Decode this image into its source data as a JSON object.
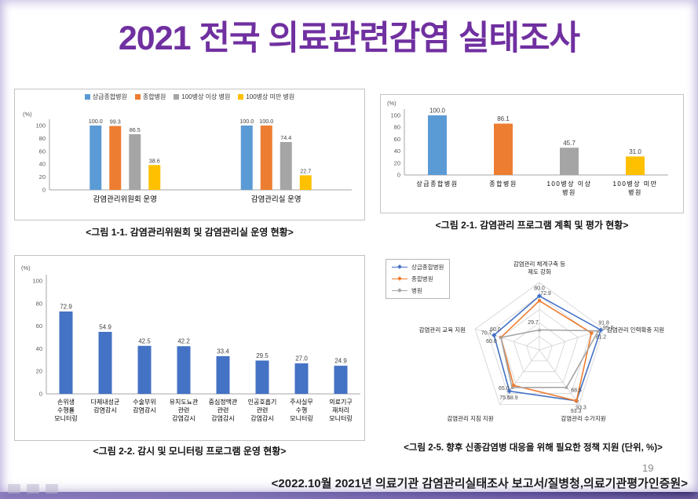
{
  "title": "2021 전국 의료관련감염 실태조사",
  "colors": {
    "title": "#7030A0",
    "supergeneral_blue": "#5B9BD5",
    "general_orange": "#ED7D31",
    "over100_gray": "#A5A5A5",
    "under100_yellow": "#FFC000",
    "monitoring_blue": "#4472C4"
  },
  "chart_data": [
    {
      "type": "bar",
      "variant": "grouped",
      "unit_label": "(%)",
      "ylim": [
        0,
        100
      ],
      "yticks": [
        0,
        20,
        40,
        60,
        80,
        100
      ],
      "categories": [
        "감염관리위원회 운영",
        "감염관리실 운영"
      ],
      "series": [
        {
          "name": "상급종합병원",
          "color": "#5B9BD5",
          "values": [
            100.0,
            100.0
          ]
        },
        {
          "name": "종합병원",
          "color": "#ED7D31",
          "values": [
            99.3,
            100.0
          ]
        },
        {
          "name": "100병상 이상 병원",
          "color": "#A5A5A5",
          "values": [
            86.5,
            74.4
          ]
        },
        {
          "name": "100병상 미만 병원",
          "color": "#FFC000",
          "values": [
            38.6,
            22.7
          ]
        }
      ],
      "legend_position": "top",
      "grid": false,
      "caption": "<그림 1-1. 감염관리위원회 및 감염관리실 운영 현황>"
    },
    {
      "type": "bar",
      "variant": "single",
      "unit_label": "(%)",
      "ylim": [
        0,
        100
      ],
      "yticks": [
        0,
        20,
        40,
        60,
        80,
        100
      ],
      "categories": [
        [
          "상급종합병원"
        ],
        [
          "종합병원"
        ],
        [
          "100병상 이상",
          "병원"
        ],
        [
          "100병상 미만",
          "병원"
        ]
      ],
      "values": [
        100.0,
        86.1,
        45.7,
        31.0
      ],
      "bar_colors": [
        "#5B9BD5",
        "#ED7D31",
        "#A5A5A5",
        "#FFC000"
      ],
      "grid": false,
      "caption": "<그림 2-1. 감염관리 프로그램 계획 및 평가 현황>"
    },
    {
      "type": "bar",
      "variant": "single",
      "unit_label": "(%)",
      "ylim": [
        0,
        100
      ],
      "yticks": [
        0,
        20,
        40,
        60,
        80,
        100
      ],
      "categories": [
        [
          "손위생",
          "수행률",
          "모니터링"
        ],
        [
          "다제내성균",
          "감염감시"
        ],
        [
          "수술부위",
          "감염감시"
        ],
        [
          "유치도뇨관",
          "관련",
          "감염감시"
        ],
        [
          "중심정맥관",
          "관련",
          "감염감시"
        ],
        [
          "인공호흡기",
          "관련",
          "감염감시"
        ],
        [
          "주사실무",
          "수행",
          "모니터링"
        ],
        [
          "의료기구",
          "재처리",
          "모니터링"
        ]
      ],
      "values": [
        72.9,
        54.9,
        42.5,
        42.2,
        33.4,
        29.5,
        27.0,
        24.9
      ],
      "bar_color": "#4472C4",
      "grid": false,
      "caption": "<그림 2-2. 감시 및 모니터링 프로그램 운영 현황>"
    },
    {
      "type": "radar",
      "axes": [
        [
          "감염관리 체계구축 등",
          "제도 강화"
        ],
        [
          "감염관리 인력확충 지원"
        ],
        [
          "감염관리 수가지원"
        ],
        [
          "감염관리 지침 지원"
        ],
        [
          "감염관리 교육 지원"
        ]
      ],
      "rings": [
        20,
        40,
        60,
        80,
        100
      ],
      "series": [
        {
          "name": "상급종합병원",
          "color": "#4472C4",
          "values": [
            80.0,
            95.6,
            93.3,
            75.5,
            70.7
          ]
        },
        {
          "name": "종합병원",
          "color": "#ED7D31",
          "values": [
            72.9,
            81.2,
            93.3,
            65.0,
            60.0
          ]
        },
        {
          "name": "병원",
          "color": "#A5A5A5",
          "values": [
            29.7,
            91.8,
            68.5,
            68.9,
            60.0
          ]
        }
      ],
      "legend_position": "top-left",
      "caption": "<그림 2-5. 향후 신종감염병 대응을 위해 필요한 정책 지원 (단위, %)>"
    }
  ],
  "footer": {
    "source": "<2022.10월 2021년 의료기관 감염관리실태조사 보고서/질병청,의료기관평가인증원>",
    "page_number": "19",
    "corner_icons": [
      "taskbar-icon",
      "taskbar-icon",
      "taskbar-icon"
    ]
  }
}
